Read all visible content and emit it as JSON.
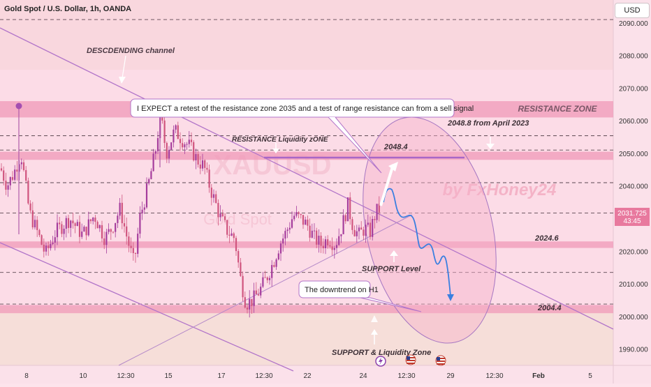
{
  "header": {
    "symbol_title": "Gold Spot / U.S. Dollar, 1h, OANDA",
    "currency": "USD"
  },
  "watermark": {
    "symbol": "XAUUSD",
    "name": "Gold Spot",
    "author": "by FxHoney24"
  },
  "colors": {
    "up_candle": "#a53c9c",
    "down_candle": "#d0547e",
    "channel": "#b275c9",
    "zone": "#f09ab8",
    "projection": "#3a7fe0",
    "price_tag": "#e8799e"
  },
  "price_tag": {
    "price": "2031.725",
    "countdown": "43:45"
  },
  "annotations": {
    "channel_label": "DESCDENDING channel",
    "callout_main": "I EXPECT a retest of the resistance zone 2035 and a test  of range resistance can from a sell signal",
    "callout_downtrend": "The downtrend on H1",
    "resistance_zone": "RESISTANCE ZONE",
    "resistance_liquidity": "RESISTANCE Liquidity zONE",
    "level_2048_4": "2048.4",
    "level_2048_8": "2048.8 from April 2023",
    "level_2024_6": "2024.6",
    "level_2004_4": "2004.4",
    "support_level": "SUPPORT Level",
    "support_liquidity": "SUPPORT & Liquidity Zone"
  },
  "event_icons": [
    "lightning-icon",
    "us-flag-icon",
    "us-flag-icon"
  ],
  "chart_data": {
    "type": "candlestick",
    "y_axis": {
      "ylim": [
        1985,
        2097
      ],
      "ticks": [
        1990,
        2000,
        2010,
        2020,
        2030,
        2040,
        2050,
        2060,
        2070,
        2080,
        2090
      ],
      "tick_labels": [
        "1990.000",
        "2000.000",
        "2010.000",
        "2020.000",
        "2030.000",
        "2040.000",
        "2050.000",
        "2060.000",
        "2070.000",
        "2080.000",
        "2090.000"
      ]
    },
    "x_axis": {
      "tick_labels": [
        "8",
        "10",
        "12:30",
        "15",
        "17",
        "12:30",
        "22",
        "24",
        "12:30",
        "29",
        "12:30",
        "Feb",
        "5"
      ]
    },
    "close_path": [
      [
        0,
        2046
      ],
      [
        10,
        2040
      ],
      [
        20,
        2044
      ],
      [
        30,
        2050
      ],
      [
        42,
        2032
      ],
      [
        55,
        2025
      ],
      [
        65,
        2019
      ],
      [
        80,
        2026
      ],
      [
        100,
        2030
      ],
      [
        118,
        2025
      ],
      [
        135,
        2031
      ],
      [
        150,
        2024
      ],
      [
        160,
        2027
      ],
      [
        172,
        2033
      ],
      [
        182,
        2024
      ],
      [
        192,
        2016
      ],
      [
        200,
        2030
      ],
      [
        212,
        2040
      ],
      [
        222,
        2050
      ],
      [
        230,
        2062
      ],
      [
        238,
        2050
      ],
      [
        250,
        2057
      ],
      [
        262,
        2054
      ],
      [
        272,
        2052
      ],
      [
        282,
        2048
      ],
      [
        292,
        2046
      ],
      [
        300,
        2040
      ],
      [
        308,
        2035
      ],
      [
        316,
        2030
      ],
      [
        326,
        2026
      ],
      [
        336,
        2024
      ],
      [
        344,
        2012
      ],
      [
        352,
        2004
      ],
      [
        362,
        2005
      ],
      [
        372,
        2008
      ],
      [
        382,
        2012
      ],
      [
        392,
        2017
      ],
      [
        400,
        2022
      ],
      [
        410,
        2026
      ],
      [
        420,
        2031
      ],
      [
        430,
        2030
      ],
      [
        440,
        2028
      ],
      [
        450,
        2024
      ],
      [
        460,
        2022
      ],
      [
        470,
        2024
      ],
      [
        480,
        2022
      ],
      [
        490,
        2028
      ],
      [
        498,
        2034
      ],
      [
        506,
        2027
      ],
      [
        514,
        2025
      ],
      [
        522,
        2027
      ],
      [
        530,
        2026
      ],
      [
        538,
        2032
      ],
      [
        544,
        2033
      ]
    ],
    "zones": [
      {
        "name": "resistance-zone-band",
        "from": 2061,
        "to": 2066
      },
      {
        "name": "resistance-liquidity-band",
        "from": 2048,
        "to": 2050.5
      },
      {
        "name": "support-2024-band",
        "from": 2021,
        "to": 2023
      },
      {
        "name": "support-2004-band",
        "from": 2001,
        "to": 2003.5
      }
    ],
    "dashed_levels": [
      2091,
      2055.4,
      2051,
      2041,
      2031.725,
      2013.5,
      2003.8
    ],
    "current_price": 2031.725
  }
}
